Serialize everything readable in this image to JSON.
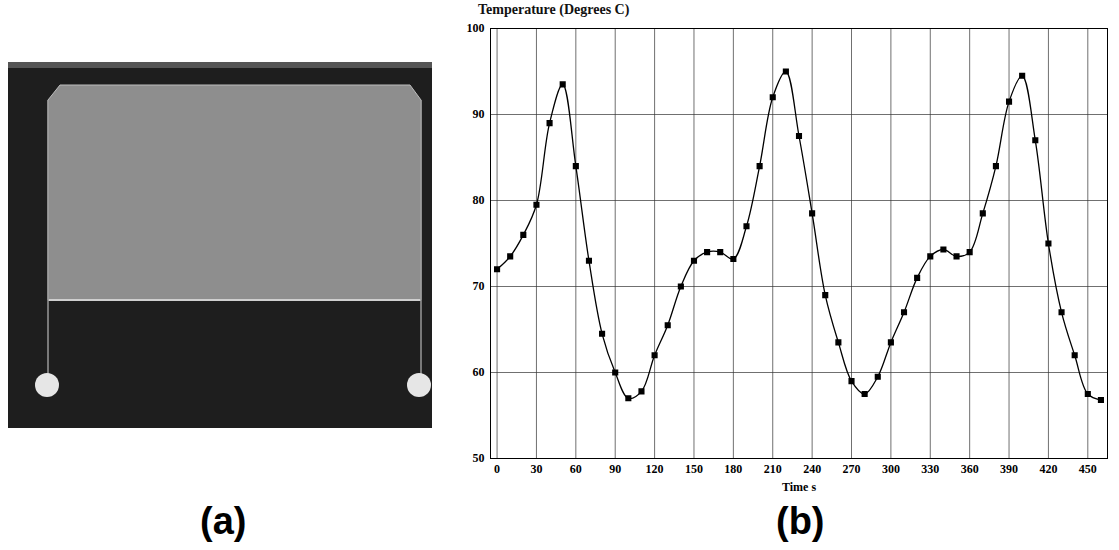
{
  "panel_labels": [
    "(a)",
    "(b)"
  ],
  "chart_data": {
    "type": "line",
    "xlabel": "Time s",
    "ylabel": "Temperature (Degrees C)",
    "x": [
      0,
      10,
      20,
      30,
      40,
      50,
      60,
      70,
      80,
      90,
      100,
      110,
      120,
      130,
      140,
      150,
      160,
      170,
      180,
      190,
      200,
      210,
      220,
      230,
      240,
      250,
      260,
      270,
      280,
      290,
      300,
      310,
      320,
      330,
      340,
      350,
      360,
      370,
      380,
      390,
      400,
      410,
      420,
      430,
      440,
      450,
      460
    ],
    "values": [
      72,
      73.5,
      76,
      79.5,
      89,
      93.5,
      84,
      73,
      64.5,
      60,
      57,
      57.8,
      62,
      65.5,
      70,
      73,
      74,
      74,
      73.2,
      77,
      84,
      92,
      95,
      87.5,
      78.5,
      69,
      63.5,
      59,
      57.5,
      59.5,
      63.5,
      67,
      71,
      73.5,
      74.3,
      73.5,
      74,
      78.5,
      84,
      91.5,
      94.5,
      87,
      75,
      67,
      62,
      57.5,
      56.8
    ],
    "color": "#000000",
    "marker": "square",
    "line_style": "solid",
    "grid": true,
    "xlim": [
      -5,
      465
    ],
    "xticks": [
      0,
      30,
      60,
      90,
      120,
      150,
      180,
      210,
      240,
      270,
      300,
      330,
      360,
      390,
      420,
      450
    ],
    "ylim": [
      50,
      100
    ],
    "yticks": [
      50,
      60,
      70,
      80,
      90,
      100
    ]
  }
}
